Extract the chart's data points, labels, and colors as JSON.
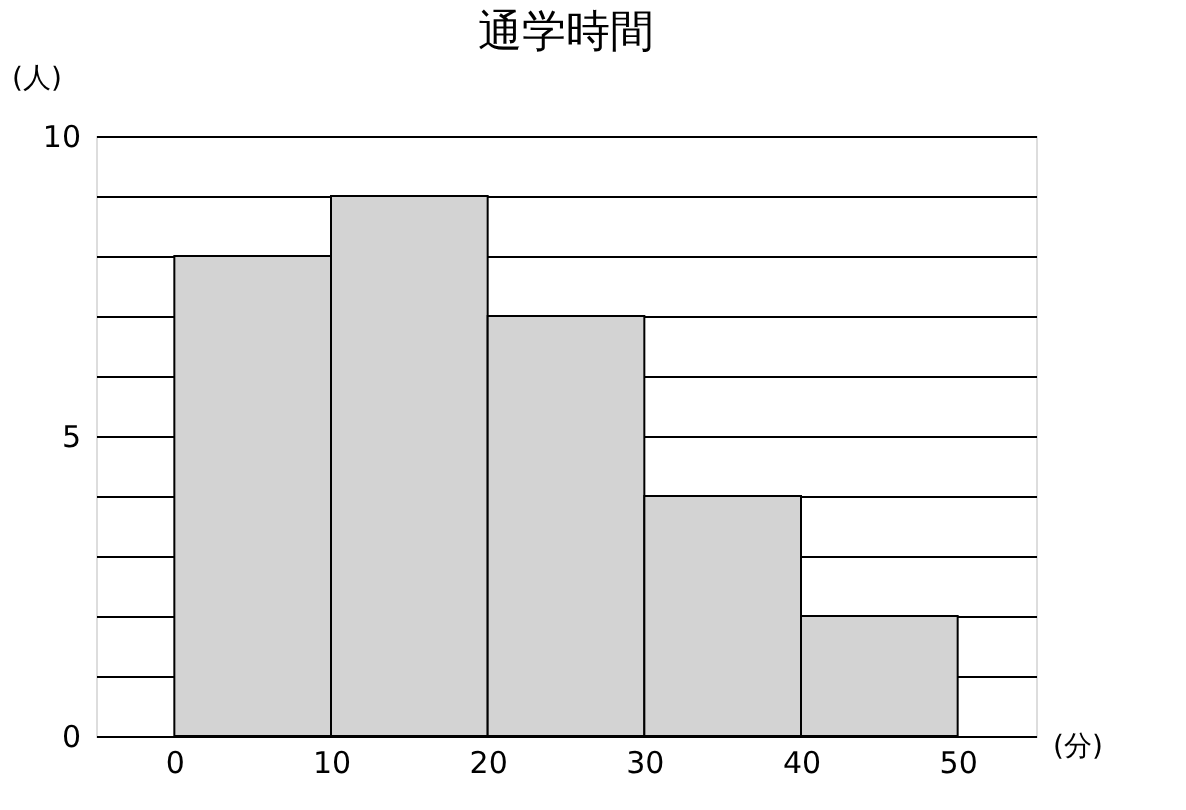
{
  "chart_data": {
    "type": "histogram",
    "title": "通学時間",
    "xlabel": "(分)",
    "ylabel": "(人)",
    "bins": [
      0,
      10,
      20,
      30,
      40,
      50
    ],
    "values": [
      8,
      9,
      7,
      4,
      2
    ],
    "color": "#d3d3d3",
    "xlim": [
      -5,
      55
    ],
    "xticks": [
      0,
      10,
      20,
      30,
      40,
      50
    ],
    "ylim": [
      0,
      10
    ],
    "yticks": [
      0,
      {
        "value": 1,
        "label": null
      },
      {
        "value": 2,
        "label": null
      },
      {
        "value": 3,
        "label": null
      },
      {
        "value": 4,
        "label": null
      },
      5,
      {
        "value": 6,
        "label": null
      },
      {
        "value": 7,
        "label": null
      },
      {
        "value": 8,
        "label": null
      },
      {
        "value": 9,
        "label": null
      },
      10
    ],
    "grid": "y"
  }
}
